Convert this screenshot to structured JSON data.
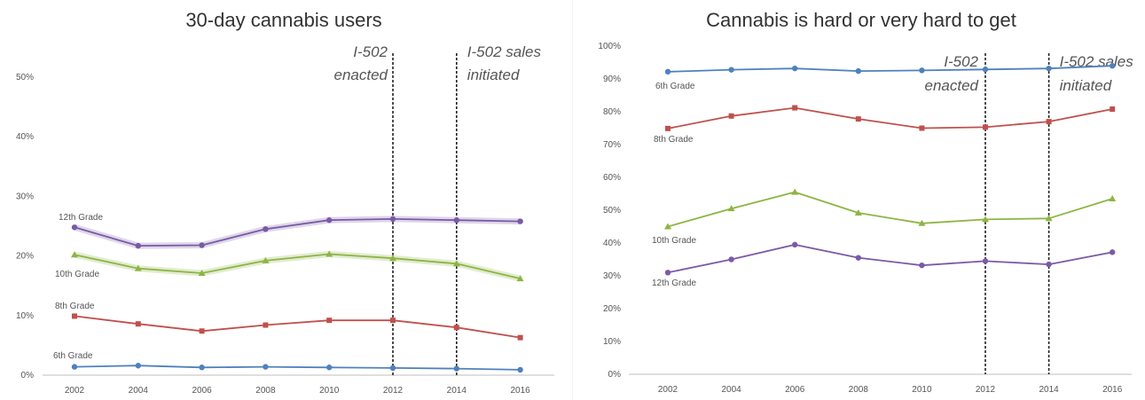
{
  "chart_data": [
    {
      "type": "line",
      "title": "30-day cannabis users",
      "xlabel": "",
      "ylabel": "",
      "x": [
        2002,
        2004,
        2006,
        2008,
        2010,
        2012,
        2014,
        2016
      ],
      "y_ticks": [
        "0%",
        "10%",
        "20%",
        "30%",
        "40%",
        "50%"
      ],
      "ylim": [
        0,
        54
      ],
      "grid": false,
      "series": [
        {
          "name": "12th Grade",
          "values": [
            24.8,
            21.7,
            21.8,
            24.5,
            26.0,
            26.2,
            26.0,
            25.8
          ],
          "color": "#7a5aa6",
          "marker": "circle",
          "band": true
        },
        {
          "name": "10th Grade",
          "values": [
            20.2,
            17.9,
            17.1,
            19.2,
            20.3,
            19.6,
            18.7,
            16.2
          ],
          "color": "#8db543",
          "marker": "triangle",
          "band": true
        },
        {
          "name": "8th Grade",
          "values": [
            9.9,
            8.6,
            7.4,
            8.4,
            9.2,
            9.2,
            8.0,
            6.3
          ],
          "color": "#c0504d",
          "marker": "square",
          "band": false
        },
        {
          "name": "6th Grade",
          "values": [
            1.4,
            1.6,
            1.3,
            1.4,
            1.3,
            1.2,
            1.1,
            0.9
          ],
          "color": "#4f81bd",
          "marker": "circle",
          "band": false
        }
      ],
      "events": [
        {
          "x": 2012,
          "label_lines": [
            "I-502",
            "enacted"
          ]
        },
        {
          "x": 2014,
          "label_lines": [
            "I-502 sales",
            "initiated"
          ]
        }
      ]
    },
    {
      "type": "line",
      "title": "Cannabis is hard or very hard to get",
      "xlabel": "",
      "ylabel": "",
      "x": [
        2002,
        2004,
        2006,
        2008,
        2010,
        2012,
        2014,
        2016
      ],
      "y_ticks": [
        "0%",
        "10%",
        "20%",
        "30%",
        "40%",
        "50%",
        "60%",
        "70%",
        "80%",
        "90%",
        "100%"
      ],
      "ylim": [
        0,
        100
      ],
      "grid": false,
      "series": [
        {
          "name": "6th Grade",
          "values": [
            92.2,
            92.8,
            93.2,
            92.4,
            92.6,
            92.9,
            93.2,
            94.0
          ],
          "color": "#4f81bd",
          "marker": "circle",
          "band": false
        },
        {
          "name": "8th Grade",
          "values": [
            74.9,
            78.7,
            81.2,
            77.8,
            75.0,
            75.3,
            77.0,
            80.8
          ],
          "color": "#c0504d",
          "marker": "square",
          "band": false
        },
        {
          "name": "10th Grade",
          "values": [
            45.0,
            50.5,
            55.5,
            49.2,
            46.0,
            47.2,
            47.5,
            53.5
          ],
          "color": "#8db543",
          "marker": "triangle",
          "band": false
        },
        {
          "name": "12th Grade",
          "values": [
            31.0,
            35.0,
            39.5,
            35.5,
            33.2,
            34.5,
            33.5,
            37.2
          ],
          "color": "#7a5aa6",
          "marker": "circle",
          "band": false
        }
      ],
      "events": [
        {
          "x": 2012,
          "label_lines": [
            "I-502",
            "enacted"
          ]
        },
        {
          "x": 2014,
          "label_lines": [
            "I-502 sales",
            "initiated"
          ]
        }
      ]
    }
  ]
}
